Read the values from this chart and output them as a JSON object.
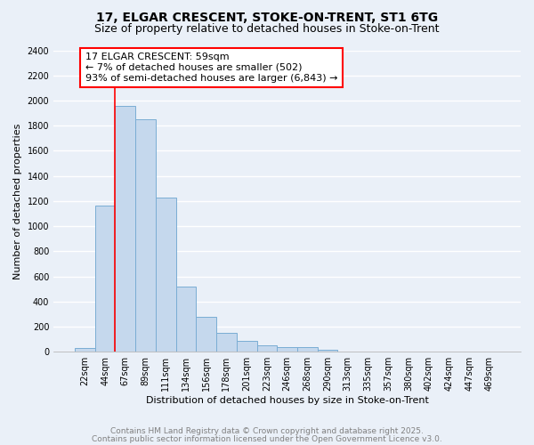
{
  "title_line1": "17, ELGAR CRESCENT, STOKE-ON-TRENT, ST1 6TG",
  "title_line2": "Size of property relative to detached houses in Stoke-on-Trent",
  "xlabel": "Distribution of detached houses by size in Stoke-on-Trent",
  "ylabel": "Number of detached properties",
  "categories": [
    "22sqm",
    "44sqm",
    "67sqm",
    "89sqm",
    "111sqm",
    "134sqm",
    "156sqm",
    "178sqm",
    "201sqm",
    "223sqm",
    "246sqm",
    "268sqm",
    "290sqm",
    "313sqm",
    "335sqm",
    "357sqm",
    "380sqm",
    "402sqm",
    "424sqm",
    "447sqm",
    "469sqm"
  ],
  "values": [
    30,
    1160,
    1960,
    1850,
    1230,
    520,
    280,
    150,
    90,
    50,
    40,
    40,
    15,
    5,
    0,
    0,
    0,
    0,
    0,
    0,
    0
  ],
  "bar_color": "#c5d8ed",
  "bar_edge_color": "#7aadd4",
  "annotation_box_text": "17 ELGAR CRESCENT: 59sqm\n← 7% of detached houses are smaller (502)\n93% of semi-detached houses are larger (6,843) →",
  "vline_x": 1.5,
  "ylim": [
    0,
    2400
  ],
  "yticks": [
    0,
    200,
    400,
    600,
    800,
    1000,
    1200,
    1400,
    1600,
    1800,
    2000,
    2200,
    2400
  ],
  "footer_line1": "Contains HM Land Registry data © Crown copyright and database right 2025.",
  "footer_line2": "Contains public sector information licensed under the Open Government Licence v3.0.",
  "bg_color": "#eaf0f8",
  "grid_color": "#ffffff",
  "title_fontsize": 10,
  "subtitle_fontsize": 9,
  "tick_fontsize": 7,
  "ylabel_fontsize": 8,
  "xlabel_fontsize": 8,
  "footer_fontsize": 6.5,
  "ann_fontsize": 8
}
